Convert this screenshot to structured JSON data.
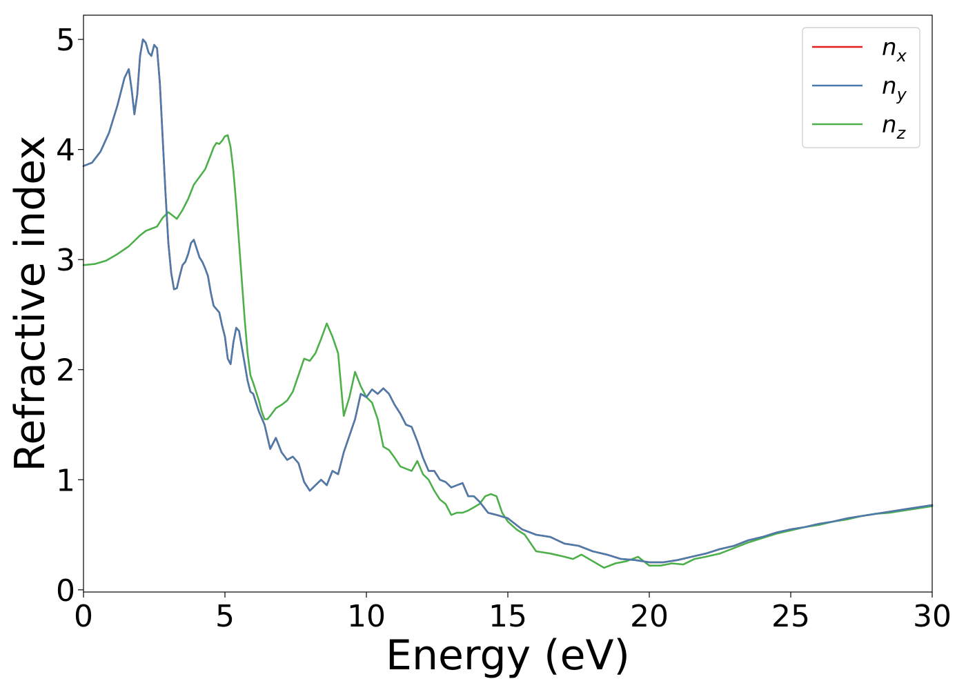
{
  "chart_data": {
    "type": "line",
    "title": "",
    "xlabel": "Energy (eV)",
    "ylabel": "Refractive index",
    "xlim": [
      0,
      30
    ],
    "ylim": [
      -0.02,
      5.22
    ],
    "xticks": [
      0,
      5,
      10,
      15,
      20,
      25,
      30
    ],
    "yticks": [
      0,
      1,
      2,
      3,
      4,
      5
    ],
    "grid": false,
    "legend_position": "top-right",
    "series": [
      {
        "name": "n_x",
        "label_base": "n",
        "label_sub": "x",
        "color": "#e41a1c",
        "x": [
          0,
          0.3,
          0.6,
          0.9,
          1.2,
          1.45,
          1.6,
          1.7,
          1.8,
          1.9,
          2.0,
          2.1,
          2.2,
          2.3,
          2.4,
          2.5,
          2.6,
          2.7,
          2.8,
          2.9,
          3.0,
          3.1,
          3.2,
          3.3,
          3.4,
          3.5,
          3.6,
          3.7,
          3.8,
          3.9,
          4.0,
          4.1,
          4.2,
          4.3,
          4.4,
          4.5,
          4.6,
          4.7,
          4.8,
          4.9,
          5.0,
          5.1,
          5.2,
          5.3,
          5.4,
          5.5,
          5.6,
          5.7,
          5.8,
          5.9,
          6.0,
          6.2,
          6.4,
          6.6,
          6.8,
          7.0,
          7.2,
          7.4,
          7.6,
          7.8,
          8.0,
          8.2,
          8.4,
          8.6,
          8.8,
          9.0,
          9.2,
          9.4,
          9.6,
          9.8,
          10.0,
          10.2,
          10.4,
          10.6,
          10.8,
          11.0,
          11.2,
          11.4,
          11.6,
          11.8,
          12.0,
          12.2,
          12.4,
          12.6,
          12.8,
          13.0,
          13.2,
          13.4,
          13.6,
          13.8,
          14.0,
          14.3,
          14.6,
          15.0,
          15.5,
          16.0,
          16.5,
          17.0,
          17.5,
          18.0,
          18.5,
          19.0,
          19.5,
          20.0,
          20.5,
          21.0,
          21.5,
          22.0,
          22.5,
          23.0,
          23.5,
          24.0,
          24.5,
          25.0,
          25.5,
          26.0,
          26.5,
          27.0,
          27.5,
          28.0,
          28.5,
          29.0,
          29.5,
          30.0
        ],
        "y": [
          3.85,
          3.88,
          3.98,
          4.15,
          4.4,
          4.65,
          4.73,
          4.55,
          4.32,
          4.5,
          4.85,
          5.0,
          4.97,
          4.88,
          4.85,
          4.95,
          4.92,
          4.6,
          4.1,
          3.6,
          3.15,
          2.88,
          2.73,
          2.74,
          2.85,
          2.95,
          2.98,
          3.05,
          3.15,
          3.18,
          3.1,
          3.02,
          2.98,
          2.92,
          2.85,
          2.7,
          2.58,
          2.55,
          2.52,
          2.4,
          2.3,
          2.1,
          2.05,
          2.25,
          2.38,
          2.35,
          2.2,
          2.05,
          1.9,
          1.8,
          1.78,
          1.62,
          1.5,
          1.28,
          1.38,
          1.25,
          1.18,
          1.21,
          1.15,
          0.98,
          0.9,
          0.95,
          1.0,
          0.95,
          1.08,
          1.05,
          1.25,
          1.4,
          1.55,
          1.78,
          1.75,
          1.82,
          1.78,
          1.83,
          1.78,
          1.68,
          1.6,
          1.5,
          1.48,
          1.35,
          1.2,
          1.08,
          1.08,
          1.0,
          0.98,
          0.93,
          0.95,
          0.97,
          0.85,
          0.85,
          0.8,
          0.7,
          0.68,
          0.65,
          0.55,
          0.5,
          0.48,
          0.42,
          0.4,
          0.35,
          0.32,
          0.28,
          0.27,
          0.25,
          0.25,
          0.27,
          0.3,
          0.33,
          0.37,
          0.4,
          0.45,
          0.48,
          0.52,
          0.55,
          0.57,
          0.6,
          0.62,
          0.65,
          0.67,
          0.69,
          0.71,
          0.73,
          0.75,
          0.77
        ]
      },
      {
        "name": "n_y",
        "label_base": "n",
        "label_sub": "y",
        "color": "#4a7bab",
        "x": [
          0,
          0.3,
          0.6,
          0.9,
          1.2,
          1.45,
          1.6,
          1.7,
          1.8,
          1.9,
          2.0,
          2.1,
          2.2,
          2.3,
          2.4,
          2.5,
          2.6,
          2.7,
          2.8,
          2.9,
          3.0,
          3.1,
          3.2,
          3.3,
          3.4,
          3.5,
          3.6,
          3.7,
          3.8,
          3.9,
          4.0,
          4.1,
          4.2,
          4.3,
          4.4,
          4.5,
          4.6,
          4.7,
          4.8,
          4.9,
          5.0,
          5.1,
          5.2,
          5.3,
          5.4,
          5.5,
          5.6,
          5.7,
          5.8,
          5.9,
          6.0,
          6.2,
          6.4,
          6.6,
          6.8,
          7.0,
          7.2,
          7.4,
          7.6,
          7.8,
          8.0,
          8.2,
          8.4,
          8.6,
          8.8,
          9.0,
          9.2,
          9.4,
          9.6,
          9.8,
          10.0,
          10.2,
          10.4,
          10.6,
          10.8,
          11.0,
          11.2,
          11.4,
          11.6,
          11.8,
          12.0,
          12.2,
          12.4,
          12.6,
          12.8,
          13.0,
          13.2,
          13.4,
          13.6,
          13.8,
          14.0,
          14.3,
          14.6,
          15.0,
          15.5,
          16.0,
          16.5,
          17.0,
          17.5,
          18.0,
          18.5,
          19.0,
          19.5,
          20.0,
          20.5,
          21.0,
          21.5,
          22.0,
          22.5,
          23.0,
          23.5,
          24.0,
          24.5,
          25.0,
          25.5,
          26.0,
          26.5,
          27.0,
          27.5,
          28.0,
          28.5,
          29.0,
          29.5,
          30.0
        ],
        "y": [
          3.85,
          3.88,
          3.98,
          4.15,
          4.4,
          4.65,
          4.73,
          4.55,
          4.32,
          4.5,
          4.85,
          5.0,
          4.97,
          4.88,
          4.85,
          4.95,
          4.92,
          4.6,
          4.1,
          3.6,
          3.15,
          2.88,
          2.73,
          2.74,
          2.85,
          2.95,
          2.98,
          3.05,
          3.15,
          3.18,
          3.1,
          3.02,
          2.98,
          2.92,
          2.85,
          2.7,
          2.58,
          2.55,
          2.52,
          2.4,
          2.3,
          2.1,
          2.05,
          2.25,
          2.38,
          2.35,
          2.2,
          2.05,
          1.9,
          1.8,
          1.78,
          1.62,
          1.5,
          1.28,
          1.38,
          1.25,
          1.18,
          1.21,
          1.15,
          0.98,
          0.9,
          0.95,
          1.0,
          0.95,
          1.08,
          1.05,
          1.25,
          1.4,
          1.55,
          1.78,
          1.75,
          1.82,
          1.78,
          1.83,
          1.78,
          1.68,
          1.6,
          1.5,
          1.48,
          1.35,
          1.2,
          1.08,
          1.08,
          1.0,
          0.98,
          0.93,
          0.95,
          0.97,
          0.85,
          0.85,
          0.8,
          0.7,
          0.68,
          0.65,
          0.55,
          0.5,
          0.48,
          0.42,
          0.4,
          0.35,
          0.32,
          0.28,
          0.27,
          0.25,
          0.25,
          0.27,
          0.3,
          0.33,
          0.37,
          0.4,
          0.45,
          0.48,
          0.52,
          0.55,
          0.57,
          0.6,
          0.62,
          0.65,
          0.67,
          0.69,
          0.71,
          0.73,
          0.75,
          0.77
        ]
      },
      {
        "name": "n_z",
        "label_base": "n",
        "label_sub": "z",
        "color": "#4daf4a",
        "x": [
          0,
          0.4,
          0.8,
          1.2,
          1.6,
          2.0,
          2.2,
          2.4,
          2.6,
          2.8,
          3.0,
          3.15,
          3.3,
          3.5,
          3.7,
          3.9,
          4.1,
          4.3,
          4.5,
          4.6,
          4.7,
          4.8,
          4.9,
          5.0,
          5.1,
          5.2,
          5.3,
          5.4,
          5.5,
          5.6,
          5.7,
          5.8,
          5.9,
          6.0,
          6.1,
          6.2,
          6.3,
          6.4,
          6.5,
          6.6,
          6.8,
          7.0,
          7.2,
          7.4,
          7.6,
          7.8,
          8.0,
          8.2,
          8.4,
          8.6,
          8.8,
          9.0,
          9.2,
          9.4,
          9.6,
          9.8,
          10.0,
          10.2,
          10.4,
          10.6,
          10.8,
          11.0,
          11.2,
          11.4,
          11.6,
          11.8,
          12.0,
          12.2,
          12.4,
          12.6,
          12.8,
          13.0,
          13.2,
          13.4,
          13.6,
          13.8,
          14.0,
          14.2,
          14.4,
          14.6,
          14.8,
          15.0,
          15.3,
          15.6,
          16.0,
          16.5,
          17.0,
          17.3,
          17.6,
          18.0,
          18.4,
          18.8,
          19.2,
          19.6,
          20.0,
          20.4,
          20.8,
          21.2,
          21.6,
          22.0,
          22.5,
          23.0,
          23.5,
          24.0,
          24.5,
          25.0,
          25.5,
          26.0,
          26.5,
          27.0,
          27.5,
          28.0,
          28.5,
          29.0,
          29.5,
          30.0
        ],
        "y": [
          2.95,
          2.96,
          2.99,
          3.05,
          3.12,
          3.22,
          3.26,
          3.28,
          3.3,
          3.38,
          3.43,
          3.4,
          3.37,
          3.45,
          3.55,
          3.68,
          3.75,
          3.82,
          3.95,
          4.02,
          4.06,
          4.05,
          4.08,
          4.12,
          4.13,
          4.02,
          3.8,
          3.5,
          3.15,
          2.8,
          2.45,
          2.15,
          1.95,
          1.88,
          1.8,
          1.72,
          1.62,
          1.55,
          1.55,
          1.58,
          1.65,
          1.68,
          1.72,
          1.8,
          1.95,
          2.1,
          2.08,
          2.15,
          2.28,
          2.42,
          2.3,
          2.15,
          1.58,
          1.75,
          1.98,
          1.85,
          1.75,
          1.7,
          1.55,
          1.3,
          1.27,
          1.2,
          1.12,
          1.1,
          1.08,
          1.17,
          1.05,
          1.0,
          0.9,
          0.82,
          0.78,
          0.68,
          0.7,
          0.7,
          0.72,
          0.75,
          0.78,
          0.85,
          0.87,
          0.85,
          0.7,
          0.62,
          0.55,
          0.5,
          0.35,
          0.33,
          0.3,
          0.28,
          0.32,
          0.26,
          0.2,
          0.24,
          0.26,
          0.3,
          0.22,
          0.22,
          0.24,
          0.23,
          0.28,
          0.3,
          0.33,
          0.38,
          0.43,
          0.47,
          0.51,
          0.54,
          0.57,
          0.59,
          0.62,
          0.64,
          0.67,
          0.69,
          0.7,
          0.72,
          0.74,
          0.76
        ]
      }
    ]
  }
}
